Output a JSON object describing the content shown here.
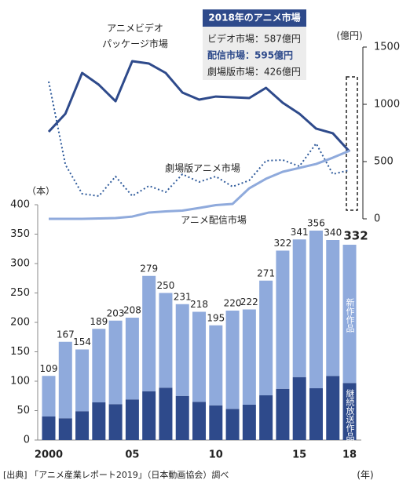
{
  "chart_data": {
    "type": "bar",
    "stacked": true,
    "categories": [
      "2000",
      null,
      null,
      null,
      null,
      "05",
      null,
      null,
      null,
      null,
      "10",
      null,
      null,
      null,
      null,
      "15",
      null,
      null,
      "18"
    ],
    "totals": [
      109,
      167,
      154,
      189,
      203,
      208,
      279,
      250,
      231,
      218,
      195,
      220,
      222,
      271,
      322,
      341,
      356,
      340,
      332
    ],
    "series": [
      {
        "name": "継続放送作品",
        "type": "bar",
        "color": "#2e4a8b",
        "values": [
          40,
          37,
          49,
          64,
          61,
          69,
          83,
          89,
          75,
          65,
          59,
          53,
          60,
          76,
          87,
          107,
          88,
          109,
          97
        ]
      },
      {
        "name": "新作作品",
        "type": "bar",
        "color": "#8faadc",
        "values": [
          69,
          130,
          105,
          125,
          142,
          139,
          196,
          161,
          156,
          153,
          136,
          167,
          162,
          195,
          235,
          234,
          268,
          231,
          235
        ]
      },
      {
        "name": "アニメビデオ\nパッケージ市場",
        "type": "line",
        "axis": "y2",
        "color": "#2e4a8b",
        "style": "solid",
        "values": [
          760,
          918,
          1274,
          1171,
          1027,
          1377,
          1356,
          1274,
          1103,
          1041,
          1068,
          1062,
          1055,
          1144,
          1014,
          918,
          788,
          747,
          587
        ]
      },
      {
        "name": "劇場版アニメ市場",
        "type": "line",
        "axis": "y2",
        "color": "#2e5a9b",
        "style": "dotted",
        "values": [
          1199,
          473,
          219,
          199,
          370,
          199,
          288,
          233,
          390,
          322,
          370,
          281,
          336,
          507,
          514,
          459,
          658,
          390,
          426
        ]
      },
      {
        "name": "アニメ配信市場",
        "type": "line",
        "axis": "y2",
        "color": "#8faadc",
        "style": "solid",
        "values": [
          0,
          0,
          0,
          3,
          7,
          20,
          55,
          65,
          72,
          95,
          120,
          130,
          267,
          350,
          411,
          445,
          479,
          534,
          595
        ]
      }
    ],
    "ylim": [
      0,
      400
    ],
    "yticks": [
      0,
      50,
      100,
      150,
      200,
      250,
      300,
      350,
      400
    ],
    "y2lim": [
      0,
      1500
    ],
    "y2ticks": [
      0,
      500,
      1000,
      1500
    ],
    "y_label": "（本）",
    "y2_label": "(億円)",
    "x_label": "(年)",
    "box": {
      "title": "2018年のアニメ市場",
      "lines": [
        "ビデオ市場：587億円",
        "配信市場：595億円",
        "劇場版市場：426億円"
      ]
    },
    "source": "[出典] 「アニメ産業レポート2019」（日本動画協会）調べ"
  }
}
